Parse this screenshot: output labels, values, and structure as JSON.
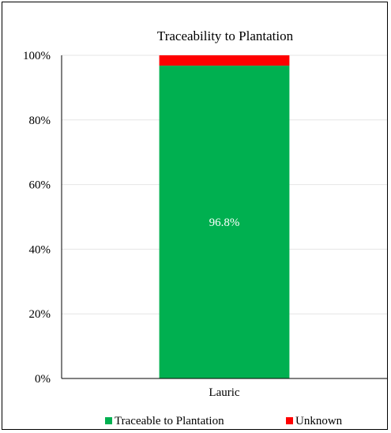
{
  "chart_data": {
    "type": "bar",
    "stacked": true,
    "percent": true,
    "title": "Traceability to Plantation",
    "categories": [
      "Lauric"
    ],
    "series": [
      {
        "name": "Traceable to Plantation",
        "values": [
          96.8
        ],
        "color": "#00B050",
        "data_label": "96.8%"
      },
      {
        "name": "Unknown",
        "values": [
          3.2
        ],
        "color": "#FF0000"
      }
    ],
    "yticks": [
      "0%",
      "20%",
      "40%",
      "60%",
      "80%",
      "100%"
    ],
    "ylim": [
      0,
      100
    ],
    "grid": true,
    "legend_position": "bottom"
  }
}
